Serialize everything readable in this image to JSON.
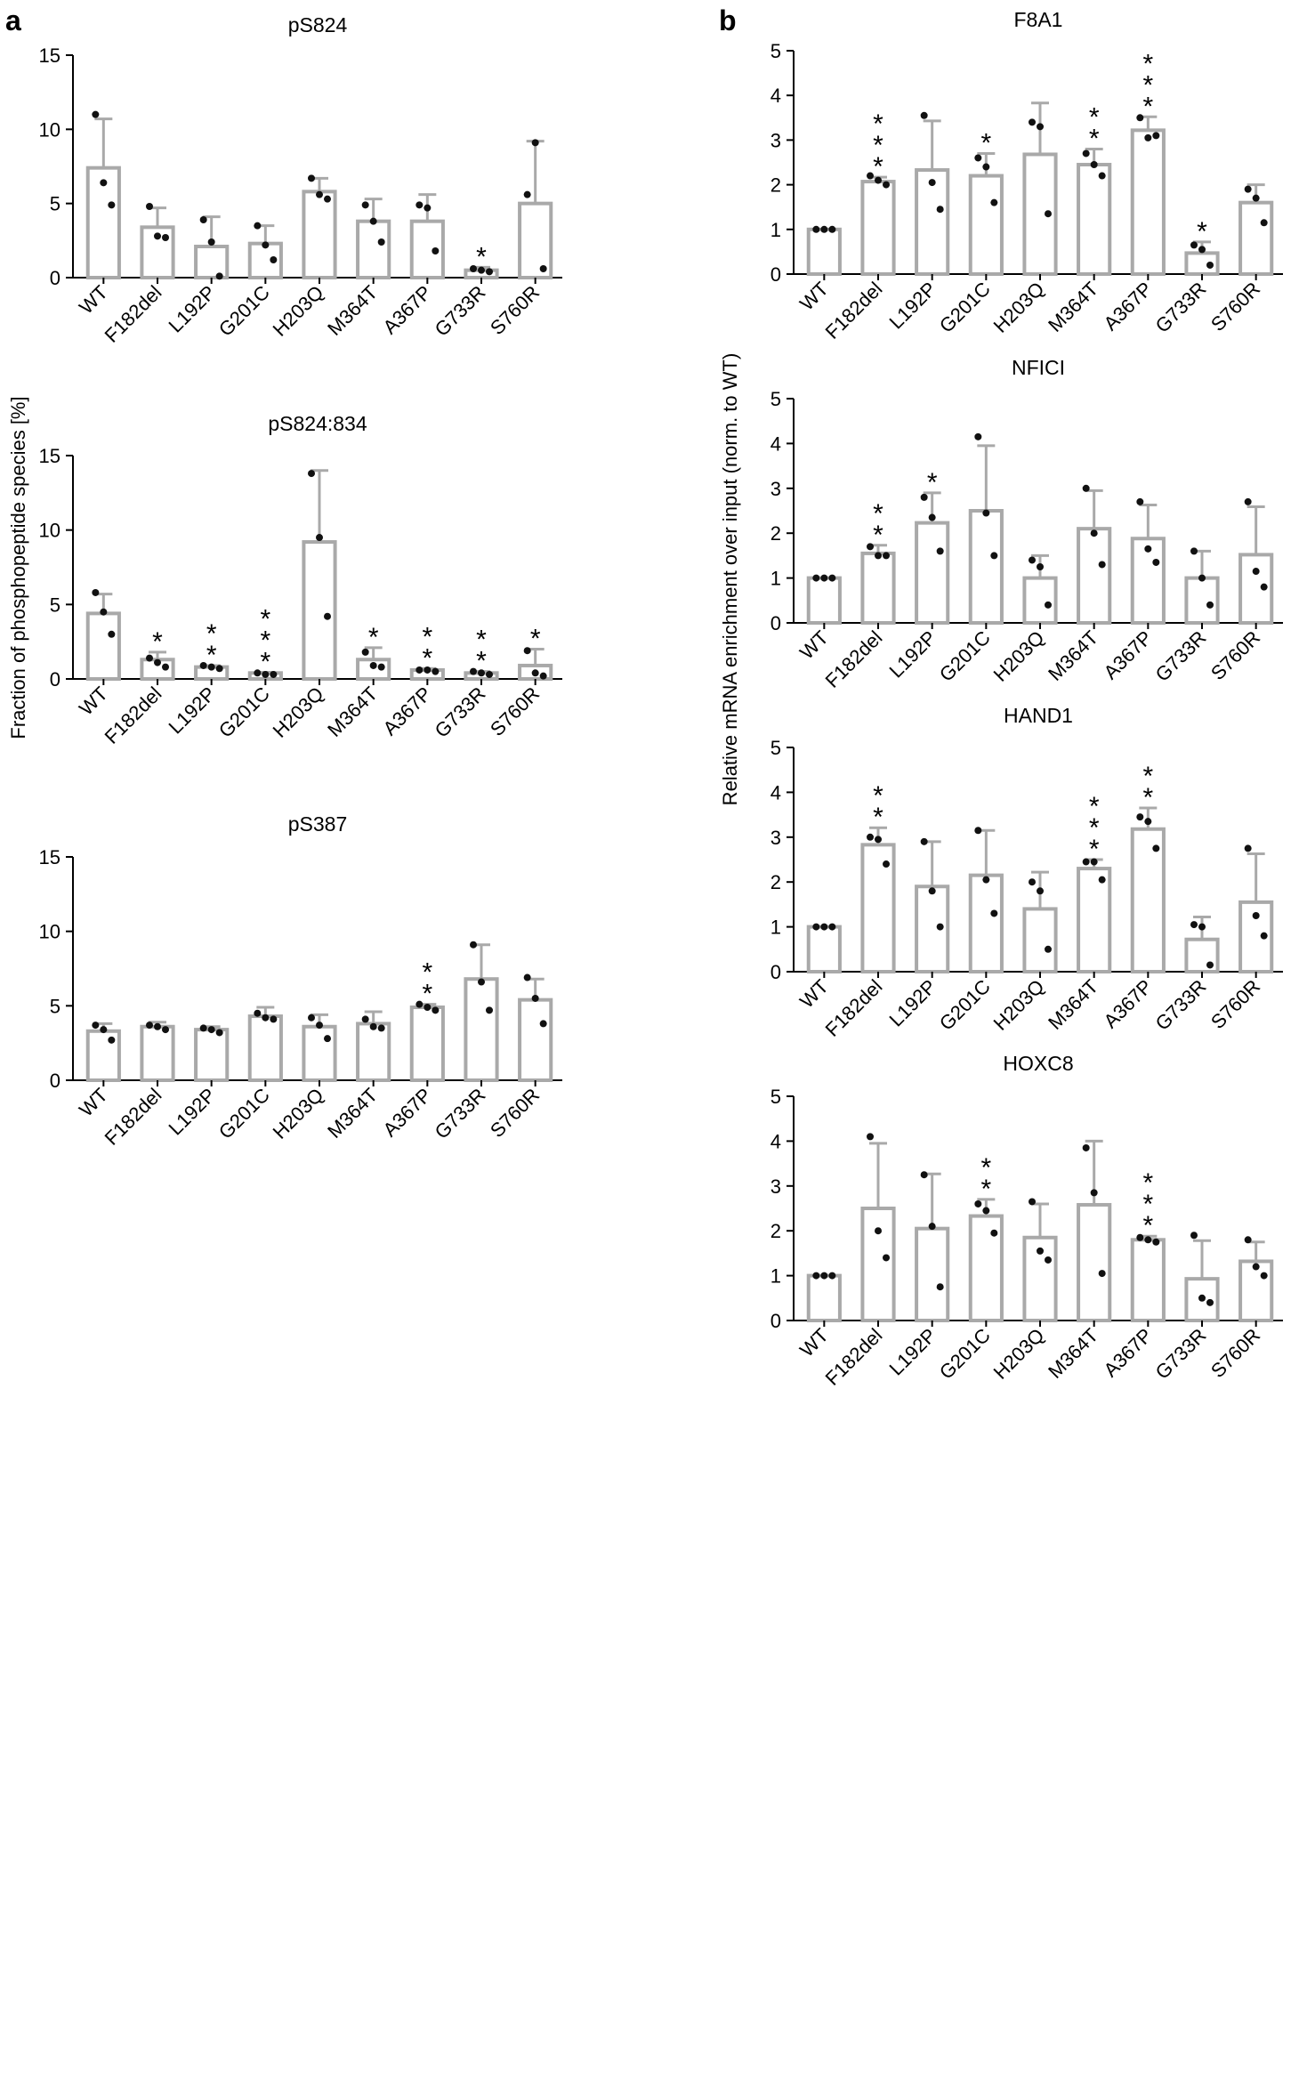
{
  "panel_labels": [
    "a",
    "b"
  ],
  "chart_data": [
    {
      "type": "bar",
      "panel": "a",
      "title": "pS824",
      "categories": [
        "WT",
        "F182del",
        "L192P",
        "G201C",
        "H203Q",
        "M364T",
        "A367P",
        "G733R",
        "S760R"
      ],
      "values": [
        7.4,
        3.4,
        2.1,
        2.3,
        5.8,
        3.8,
        3.8,
        0.5,
        5.0
      ],
      "errors": [
        3.3,
        1.3,
        2.0,
        1.2,
        0.9,
        1.5,
        1.8,
        0.2,
        4.2
      ],
      "points": [
        [
          11.0,
          6.4,
          4.9
        ],
        [
          4.8,
          2.8,
          2.7
        ],
        [
          3.9,
          2.4,
          0.1
        ],
        [
          3.5,
          2.2,
          1.2
        ],
        [
          6.7,
          5.6,
          5.3
        ],
        [
          4.9,
          3.8,
          2.4
        ],
        [
          4.9,
          4.7,
          1.8
        ],
        [
          0.6,
          0.5,
          0.4
        ],
        [
          5.6,
          9.1,
          0.6
        ]
      ],
      "significance": [
        "",
        "",
        "",
        "",
        "",
        "",
        "",
        "*",
        ""
      ],
      "ylim": [
        0,
        15
      ],
      "yticks": [
        0,
        5,
        10,
        15
      ],
      "xlabel": "",
      "ylabel": ""
    },
    {
      "type": "bar",
      "panel": "a",
      "title": "pS824:834",
      "categories": [
        "WT",
        "F182del",
        "L192P",
        "G201C",
        "H203Q",
        "M364T",
        "A367P",
        "G733R",
        "S760R"
      ],
      "values": [
        4.4,
        1.3,
        0.8,
        0.4,
        9.2,
        1.3,
        0.6,
        0.4,
        0.9
      ],
      "errors": [
        1.3,
        0.5,
        0.1,
        0.05,
        4.8,
        0.8,
        0.1,
        0.1,
        1.1
      ],
      "points": [
        [
          5.8,
          4.5,
          3.0
        ],
        [
          1.4,
          1.1,
          0.8
        ],
        [
          0.9,
          0.8,
          0.7
        ],
        [
          0.4,
          0.3,
          0.3
        ],
        [
          13.8,
          9.5,
          4.2
        ],
        [
          1.8,
          0.9,
          0.8
        ],
        [
          0.6,
          0.6,
          0.5
        ],
        [
          0.5,
          0.4,
          0.3
        ],
        [
          1.9,
          0.4,
          0.2
        ]
      ],
      "significance": [
        "",
        "*",
        "**",
        "***",
        "",
        "*",
        "**",
        "**",
        "*"
      ],
      "ylim": [
        0,
        15
      ],
      "yticks": [
        0,
        5,
        10,
        15
      ],
      "xlabel": "",
      "ylabel": "Fraction of phosphopeptide species [%]"
    },
    {
      "type": "bar",
      "panel": "a",
      "title": "pS387",
      "categories": [
        "WT",
        "F182del",
        "L192P",
        "G201C",
        "H203Q",
        "M364T",
        "A367P",
        "G733R",
        "S760R"
      ],
      "values": [
        3.3,
        3.6,
        3.4,
        4.3,
        3.6,
        3.8,
        4.9,
        6.8,
        5.4
      ],
      "errors": [
        0.5,
        0.3,
        0.2,
        0.6,
        0.8,
        0.8,
        0.2,
        2.3,
        1.4
      ],
      "points": [
        [
          3.7,
          3.4,
          2.7
        ],
        [
          3.7,
          3.6,
          3.4
        ],
        [
          3.5,
          3.4,
          3.2
        ],
        [
          4.5,
          4.2,
          4.1
        ],
        [
          4.2,
          3.7,
          2.8
        ],
        [
          4.1,
          3.6,
          3.5
        ],
        [
          5.1,
          4.9,
          4.7
        ],
        [
          9.1,
          6.6,
          4.7
        ],
        [
          6.9,
          5.5,
          3.8
        ]
      ],
      "significance": [
        "",
        "",
        "",
        "",
        "",
        "",
        "**",
        "",
        ""
      ],
      "ylim": [
        0,
        15
      ],
      "yticks": [
        0,
        5,
        10,
        15
      ],
      "xlabel": "",
      "ylabel": ""
    },
    {
      "type": "bar",
      "panel": "b",
      "title": "F8A1",
      "categories": [
        "WT",
        "F182del",
        "L192P",
        "G201C",
        "H203Q",
        "M364T",
        "A367P",
        "G733R",
        "S760R"
      ],
      "values": [
        1.0,
        2.07,
        2.33,
        2.2,
        2.68,
        2.45,
        3.22,
        0.47,
        1.6
      ],
      "errors": [
        0.0,
        0.1,
        1.1,
        0.5,
        1.15,
        0.35,
        0.3,
        0.25,
        0.4
      ],
      "points": [
        [
          1.0,
          1.0,
          1.0
        ],
        [
          2.2,
          2.1,
          2.0
        ],
        [
          3.55,
          2.05,
          1.45
        ],
        [
          2.6,
          2.4,
          1.6
        ],
        [
          3.4,
          3.3,
          1.35
        ],
        [
          2.7,
          2.45,
          2.2
        ],
        [
          3.5,
          3.05,
          3.1
        ],
        [
          0.65,
          0.55,
          0.2
        ],
        [
          1.9,
          1.7,
          1.15
        ]
      ],
      "significance": [
        "",
        "***",
        "",
        "*",
        "",
        "**",
        "***",
        "*",
        ""
      ],
      "ylim": [
        0,
        5
      ],
      "yticks": [
        0,
        1,
        2,
        3,
        4,
        5
      ],
      "xlabel": "",
      "ylabel": ""
    },
    {
      "type": "bar",
      "panel": "b",
      "title": "NFICI",
      "categories": [
        "WT",
        "F182del",
        "L192P",
        "G201C",
        "H203Q",
        "M364T",
        "A367P",
        "G733R",
        "S760R"
      ],
      "values": [
        1.0,
        1.55,
        2.23,
        2.5,
        1.0,
        2.1,
        1.88,
        1.0,
        1.52
      ],
      "errors": [
        0.0,
        0.18,
        0.67,
        1.45,
        0.5,
        0.85,
        0.75,
        0.6,
        1.07
      ],
      "points": [
        [
          1.0,
          1.0,
          1.0
        ],
        [
          1.7,
          1.5,
          1.5
        ],
        [
          2.8,
          2.35,
          1.6
        ],
        [
          4.15,
          2.45,
          1.5
        ],
        [
          1.4,
          1.25,
          0.4
        ],
        [
          3.0,
          2.0,
          1.3
        ],
        [
          2.7,
          1.65,
          1.35
        ],
        [
          1.6,
          1.0,
          0.4
        ],
        [
          2.7,
          1.15,
          0.8
        ]
      ],
      "significance": [
        "",
        "**",
        "*",
        "",
        "",
        "",
        "",
        "",
        ""
      ],
      "ylim": [
        0,
        5
      ],
      "yticks": [
        0,
        1,
        2,
        3,
        4,
        5
      ],
      "xlabel": "",
      "ylabel": "Relative mRNA enrichment over input (norm. to WT)"
    },
    {
      "type": "bar",
      "panel": "b",
      "title": "HAND1",
      "categories": [
        "WT",
        "F182del",
        "L192P",
        "G201C",
        "H203Q",
        "M364T",
        "A367P",
        "G733R",
        "S760R"
      ],
      "values": [
        1.0,
        2.83,
        1.9,
        2.15,
        1.4,
        2.3,
        3.18,
        0.72,
        1.55
      ],
      "errors": [
        0.0,
        0.38,
        1.0,
        1.0,
        0.82,
        0.2,
        0.47,
        0.5,
        1.08
      ],
      "points": [
        [
          1.0,
          1.0,
          1.0
        ],
        [
          3.0,
          2.95,
          2.4
        ],
        [
          2.9,
          1.8,
          1.0
        ],
        [
          3.15,
          2.05,
          1.3
        ],
        [
          2.0,
          1.8,
          0.5
        ],
        [
          2.45,
          2.45,
          2.05
        ],
        [
          3.45,
          3.35,
          2.75
        ],
        [
          1.05,
          1.0,
          0.15
        ],
        [
          2.75,
          1.25,
          0.8
        ]
      ],
      "significance": [
        "",
        "**",
        "",
        "",
        "",
        "***",
        "**",
        "",
        ""
      ],
      "ylim": [
        0,
        5
      ],
      "yticks": [
        0,
        1,
        2,
        3,
        4,
        5
      ],
      "xlabel": "",
      "ylabel": ""
    },
    {
      "type": "bar",
      "panel": "b",
      "title": "HOXC8",
      "categories": [
        "WT",
        "F182del",
        "L192P",
        "G201C",
        "H203Q",
        "M364T",
        "A367P",
        "G733R",
        "S760R"
      ],
      "values": [
        1.0,
        2.5,
        2.05,
        2.33,
        1.85,
        2.58,
        1.8,
        0.93,
        1.32
      ],
      "errors": [
        0.0,
        1.45,
        1.22,
        0.37,
        0.75,
        1.42,
        0.08,
        0.85,
        0.43
      ],
      "points": [
        [
          1.0,
          1.0,
          1.0
        ],
        [
          4.1,
          2.0,
          1.4
        ],
        [
          3.25,
          2.1,
          0.75
        ],
        [
          2.6,
          2.45,
          1.95
        ],
        [
          2.65,
          1.55,
          1.35
        ],
        [
          3.85,
          2.85,
          1.05
        ],
        [
          1.85,
          1.8,
          1.75
        ],
        [
          1.9,
          0.5,
          0.4
        ],
        [
          1.8,
          1.2,
          1.0
        ]
      ],
      "significance": [
        "",
        "",
        "",
        "**",
        "",
        "",
        "***",
        "",
        ""
      ],
      "ylim": [
        0,
        5
      ],
      "yticks": [
        0,
        1,
        2,
        3,
        4,
        5
      ],
      "xlabel": "",
      "ylabel": ""
    }
  ]
}
